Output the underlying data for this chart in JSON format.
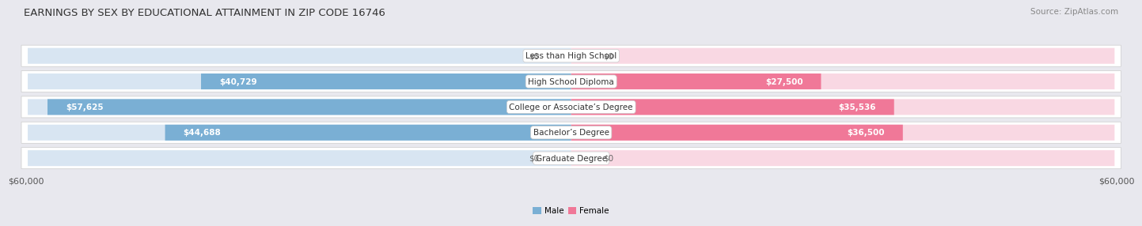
{
  "title": "EARNINGS BY SEX BY EDUCATIONAL ATTAINMENT IN ZIP CODE 16746",
  "source": "Source: ZipAtlas.com",
  "categories": [
    "Less than High School",
    "High School Diploma",
    "College or Associate’s Degree",
    "Bachelor’s Degree",
    "Graduate Degree"
  ],
  "male_values": [
    0,
    40729,
    57625,
    44688,
    0
  ],
  "female_values": [
    0,
    27500,
    35536,
    36500,
    0
  ],
  "male_labels": [
    "$0",
    "$40,729",
    "$57,625",
    "$44,688",
    "$0"
  ],
  "female_labels": [
    "$0",
    "$27,500",
    "$35,536",
    "$36,500",
    "$0"
  ],
  "male_color": "#7aafd4",
  "female_color": "#f07898",
  "male_color_light": "#b8d0e8",
  "female_color_light": "#f5b8cc",
  "axis_max": 60000,
  "row_bg_color": "#f0f0f5",
  "background_color": "#e8e8ee",
  "xlabel_left": "$60,000",
  "xlabel_right": "$60,000",
  "legend_male": "Male",
  "legend_female": "Female",
  "title_fontsize": 9.5,
  "source_fontsize": 7.5,
  "label_fontsize": 7.5,
  "category_fontsize": 7.5,
  "axis_fontsize": 8
}
